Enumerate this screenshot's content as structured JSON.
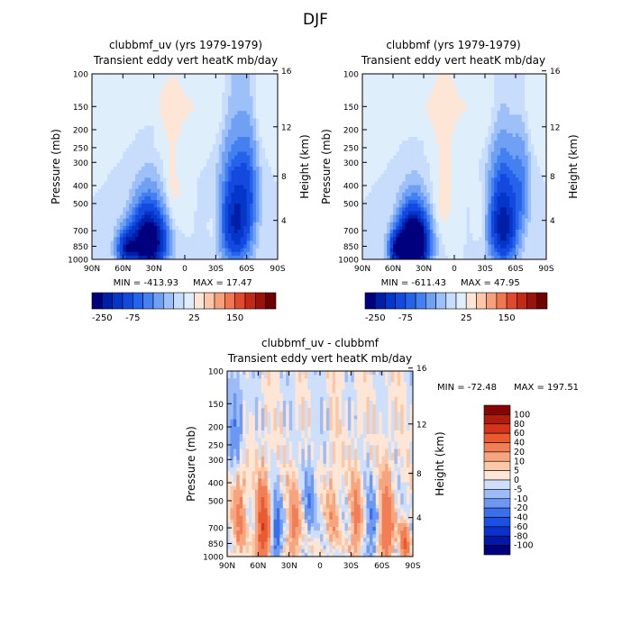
{
  "page_title": "DJF",
  "chart_data": [
    {
      "type": "heatmap",
      "title": "clubbmf_uv (yrs 1979-1979)",
      "subtitle": "Transient eddy vert heatK mb/day",
      "xlabel": "",
      "ylabel": "Pressure (mb)",
      "y2label": "Height (km)",
      "x_ticks": [
        "90N",
        "60N",
        "30N",
        "0",
        "30S",
        "60S",
        "90S"
      ],
      "y_ticks": [
        "100",
        "150",
        "200",
        "250",
        "300",
        "400",
        "500",
        "700",
        "850",
        "1000"
      ],
      "y2_ticks": [
        "16",
        "12",
        "8",
        "4"
      ],
      "min_label": "MIN = -413.93",
      "max_label": "MAX = 17.47",
      "colorbar_labels": [
        "-250",
        "-75",
        "25",
        "150"
      ],
      "features": [
        {
          "lat": 35,
          "p": 800,
          "value": -400,
          "spread_lat": 14,
          "spread_p": 260
        },
        {
          "lat": 55,
          "p": 870,
          "value": -220,
          "spread_lat": 9,
          "spread_p": 170
        },
        {
          "lat": -50,
          "p": 620,
          "value": -220,
          "spread_lat": 13,
          "spread_p": 330
        },
        {
          "lat": -62,
          "p": 400,
          "value": -60,
          "spread_lat": 8,
          "spread_p": 220
        },
        {
          "lat": 12,
          "p": 450,
          "value": 15,
          "spread_lat": 9,
          "spread_p": 260
        },
        {
          "lat": -30,
          "p": 650,
          "value": 12,
          "spread_lat": 6,
          "spread_p": 200
        }
      ]
    },
    {
      "type": "heatmap",
      "title": "clubbmf (yrs 1979-1979)",
      "subtitle": "Transient eddy vert heatK mb/day",
      "xlabel": "",
      "ylabel": "Pressure (mb)",
      "y2label": "Height (km)",
      "x_ticks": [
        "90N",
        "60N",
        "30N",
        "0",
        "30S",
        "60S",
        "90S"
      ],
      "y_ticks": [
        "100",
        "150",
        "200",
        "250",
        "300",
        "400",
        "500",
        "700",
        "850",
        "1000"
      ],
      "y2_ticks": [
        "16",
        "12",
        "8",
        "4"
      ],
      "min_label": "MIN = -611.43",
      "max_label": "MAX = 47.95",
      "colorbar_labels": [
        "-250",
        "-75",
        "25",
        "150"
      ],
      "features": [
        {
          "lat": 40,
          "p": 820,
          "value": -600,
          "spread_lat": 12,
          "spread_p": 240
        },
        {
          "lat": 55,
          "p": 880,
          "value": -250,
          "spread_lat": 8,
          "spread_p": 150
        },
        {
          "lat": -48,
          "p": 650,
          "value": -240,
          "spread_lat": 12,
          "spread_p": 320
        },
        {
          "lat": -65,
          "p": 420,
          "value": -60,
          "spread_lat": 8,
          "spread_p": 220
        },
        {
          "lat": 10,
          "p": 430,
          "value": 18,
          "spread_lat": 9,
          "spread_p": 260
        },
        {
          "lat": -28,
          "p": 600,
          "value": 14,
          "spread_lat": 6,
          "spread_p": 200
        }
      ]
    },
    {
      "type": "heatmap",
      "title": "clubbmf_uv - clubbmf",
      "subtitle": "Transient eddy vert heatK mb/day",
      "xlabel": "",
      "ylabel": "Pressure (mb)",
      "y2label": "Height (km)",
      "x_ticks": [
        "90N",
        "60N",
        "30N",
        "0",
        "30S",
        "60S",
        "90S"
      ],
      "y_ticks": [
        "100",
        "150",
        "200",
        "250",
        "300",
        "400",
        "500",
        "700",
        "850",
        "1000"
      ],
      "y2_ticks": [
        "16",
        "12",
        "8",
        "4"
      ],
      "min_label": "MIN = -72.48",
      "max_label": "MAX = 197.51",
      "colorbar_labels": [
        "100",
        "80",
        "60",
        "40",
        "20",
        "10",
        "5",
        "0",
        "-5",
        "-10",
        "-20",
        "-40",
        "-60",
        "-80",
        "-100"
      ],
      "features": [
        {
          "lat": 55,
          "p": 720,
          "value": 60,
          "spread_lat": 6,
          "spread_p": 300
        },
        {
          "lat": 78,
          "p": 620,
          "value": 25,
          "spread_lat": 6,
          "spread_p": 320
        },
        {
          "lat": 42,
          "p": 750,
          "value": -30,
          "spread_lat": 5,
          "spread_p": 260
        },
        {
          "lat": 25,
          "p": 700,
          "value": 25,
          "spread_lat": 6,
          "spread_p": 300
        },
        {
          "lat": 10,
          "p": 500,
          "value": -15,
          "spread_lat": 6,
          "spread_p": 250
        },
        {
          "lat": -12,
          "p": 600,
          "value": 15,
          "spread_lat": 6,
          "spread_p": 300
        },
        {
          "lat": -35,
          "p": 650,
          "value": 25,
          "spread_lat": 5,
          "spread_p": 320
        },
        {
          "lat": -50,
          "p": 700,
          "value": -20,
          "spread_lat": 5,
          "spread_p": 280
        },
        {
          "lat": -65,
          "p": 700,
          "value": 40,
          "spread_lat": 6,
          "spread_p": 320
        },
        {
          "lat": -82,
          "p": 850,
          "value": 40,
          "spread_lat": 4,
          "spread_p": 180
        },
        {
          "lat": 80,
          "p": 200,
          "value": -20,
          "spread_lat": 7,
          "spread_p": 130
        }
      ]
    }
  ],
  "palette": {
    "levels": [
      -250,
      -200,
      -150,
      -100,
      -75,
      -50,
      -25,
      -10,
      0,
      10,
      25,
      50,
      75,
      100,
      150,
      200,
      250
    ],
    "colors": [
      "#00007f",
      "#001fa6",
      "#0436c9",
      "#1449e0",
      "#2563eb",
      "#4580f0",
      "#6fa0f4",
      "#9ec0f8",
      "#c8ddfb",
      "#dfeefb",
      "#fde6d6",
      "#fcc6a8",
      "#f6a07c",
      "#ef7752",
      "#e1492e",
      "#c22a17",
      "#9a120b",
      "#6c0003"
    ]
  },
  "diff_palette": {
    "levels": [
      -100,
      -80,
      -60,
      -40,
      -20,
      -10,
      -5,
      0,
      5,
      10,
      20,
      40,
      60,
      80,
      100
    ],
    "colors": [
      "#00007f",
      "#0418a8",
      "#0b31cc",
      "#1c4fe2",
      "#3a6fec",
      "#6c98f3",
      "#9dbcf7",
      "#cddffb",
      "#fde6d6",
      "#fbc8a8",
      "#f6a57e",
      "#f27e55",
      "#ea5a31",
      "#d4341a",
      "#b01c0c",
      "#870404"
    ]
  }
}
